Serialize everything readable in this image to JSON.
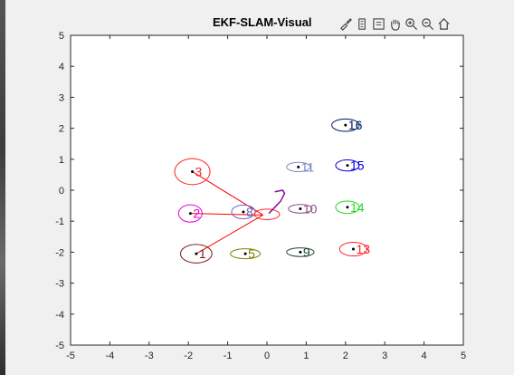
{
  "figure": {
    "title": "EKF-SLAM-Visual",
    "toolbar": [
      {
        "name": "brush-icon"
      },
      {
        "name": "export-icon"
      },
      {
        "name": "datatip-icon"
      },
      {
        "name": "pan-hand-icon"
      },
      {
        "name": "zoom-in-icon"
      },
      {
        "name": "zoom-out-icon"
      },
      {
        "name": "home-icon"
      }
    ]
  },
  "chart_data": {
    "type": "scatter",
    "title": "EKF-SLAM-Visual",
    "xlabel": "",
    "ylabel": "",
    "xlim": [
      -5,
      5
    ],
    "ylim": [
      -5,
      5
    ],
    "xticks": [
      "-5",
      "-4",
      "-3",
      "-2",
      "-1",
      "0",
      "1",
      "2",
      "3",
      "4",
      "5"
    ],
    "yticks": [
      "5",
      "4",
      "3",
      "2",
      "1",
      "0",
      "-1",
      "-2",
      "-3",
      "-4",
      "-5"
    ],
    "grid": false,
    "landmarks": [
      {
        "label": "1",
        "x": -1.8,
        "y": -2.05,
        "rx": 0.4,
        "ry": 0.3,
        "color": "#7a1a1a"
      },
      {
        "label": "2",
        "x": -1.95,
        "y": -0.75,
        "rx": 0.3,
        "ry": 0.28,
        "color": "#e000e0"
      },
      {
        "label": "3",
        "x": -1.9,
        "y": 0.6,
        "rx": 0.45,
        "ry": 0.42,
        "color": "#ff2222"
      },
      {
        "label": "5",
        "x": -0.55,
        "y": -2.05,
        "rx": 0.38,
        "ry": 0.16,
        "color": "#808000"
      },
      {
        "label": "8",
        "x": -0.6,
        "y": -0.7,
        "rx": 0.3,
        "ry": 0.22,
        "color": "#6666cc"
      },
      {
        "label": "9",
        "x": 0.85,
        "y": -2.0,
        "rx": 0.35,
        "ry": 0.14,
        "color": "#1f4a2e"
      },
      {
        "label": "10",
        "x": 0.85,
        "y": -0.6,
        "rx": 0.3,
        "ry": 0.14,
        "color": "#8c4f8c"
      },
      {
        "label": "11",
        "x": 0.8,
        "y": 0.75,
        "rx": 0.3,
        "ry": 0.15,
        "color": "#7a8cc6"
      },
      {
        "label": "13",
        "x": 2.2,
        "y": -1.9,
        "rx": 0.35,
        "ry": 0.22,
        "color": "#ff2222"
      },
      {
        "label": "14",
        "x": 2.05,
        "y": -0.55,
        "rx": 0.3,
        "ry": 0.2,
        "color": "#22dd22"
      },
      {
        "label": "15",
        "x": 2.05,
        "y": 0.8,
        "rx": 0.3,
        "ry": 0.18,
        "color": "#0000dd"
      },
      {
        "label": "16",
        "x": 2.0,
        "y": 2.1,
        "rx": 0.35,
        "ry": 0.2,
        "color": "#001a66"
      }
    ],
    "robot": {
      "x": 0.0,
      "y": -0.78,
      "rx": 0.32,
      "ry": 0.17,
      "color": "#ff2222"
    },
    "robot_path": [
      [
        0.05,
        -0.75
      ],
      [
        0.2,
        -0.55
      ],
      [
        0.35,
        -0.35
      ],
      [
        0.45,
        -0.1
      ],
      [
        0.4,
        0.0
      ],
      [
        0.2,
        -0.05
      ]
    ],
    "path_color": "#d0006f",
    "observation_lines": [
      {
        "from": [
          -0.1,
          -0.8
        ],
        "to": [
          -1.8,
          -2.05
        ]
      },
      {
        "from": [
          -0.1,
          -0.8
        ],
        "to": [
          -1.95,
          -0.75
        ]
      },
      {
        "from": [
          -0.1,
          -0.8
        ],
        "to": [
          -1.9,
          0.6
        ]
      }
    ],
    "observation_color": "#ff0000"
  }
}
